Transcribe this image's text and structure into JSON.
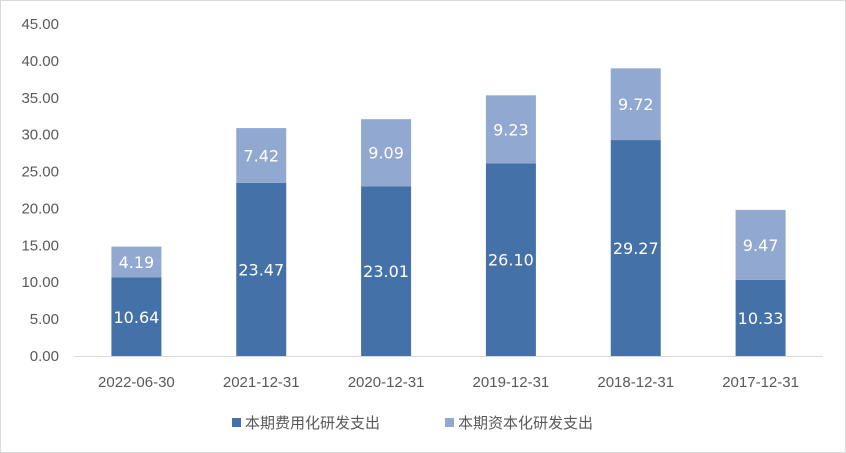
{
  "chart_data": {
    "type": "bar",
    "stacked": true,
    "categories": [
      "2022-06-30",
      "2021-12-31",
      "2020-12-31",
      "2019-12-31",
      "2018-12-31",
      "2017-12-31"
    ],
    "series": [
      {
        "name": "本期费用化研发支出",
        "values": [
          10.64,
          23.47,
          23.01,
          26.1,
          29.27,
          10.33
        ],
        "color": "#4472a8"
      },
      {
        "name": "本期资本化研发支出",
        "values": [
          4.19,
          7.42,
          9.09,
          9.23,
          9.72,
          9.47
        ],
        "color": "#91a8d0"
      }
    ],
    "ylim": [
      0,
      45
    ],
    "yticks": [
      "0.00",
      "5.00",
      "10.00",
      "15.00",
      "20.00",
      "25.00",
      "30.00",
      "35.00",
      "40.00",
      "45.00"
    ],
    "title": "",
    "xlabel": "",
    "ylabel": "",
    "grid": false,
    "legend_position": "bottom"
  }
}
